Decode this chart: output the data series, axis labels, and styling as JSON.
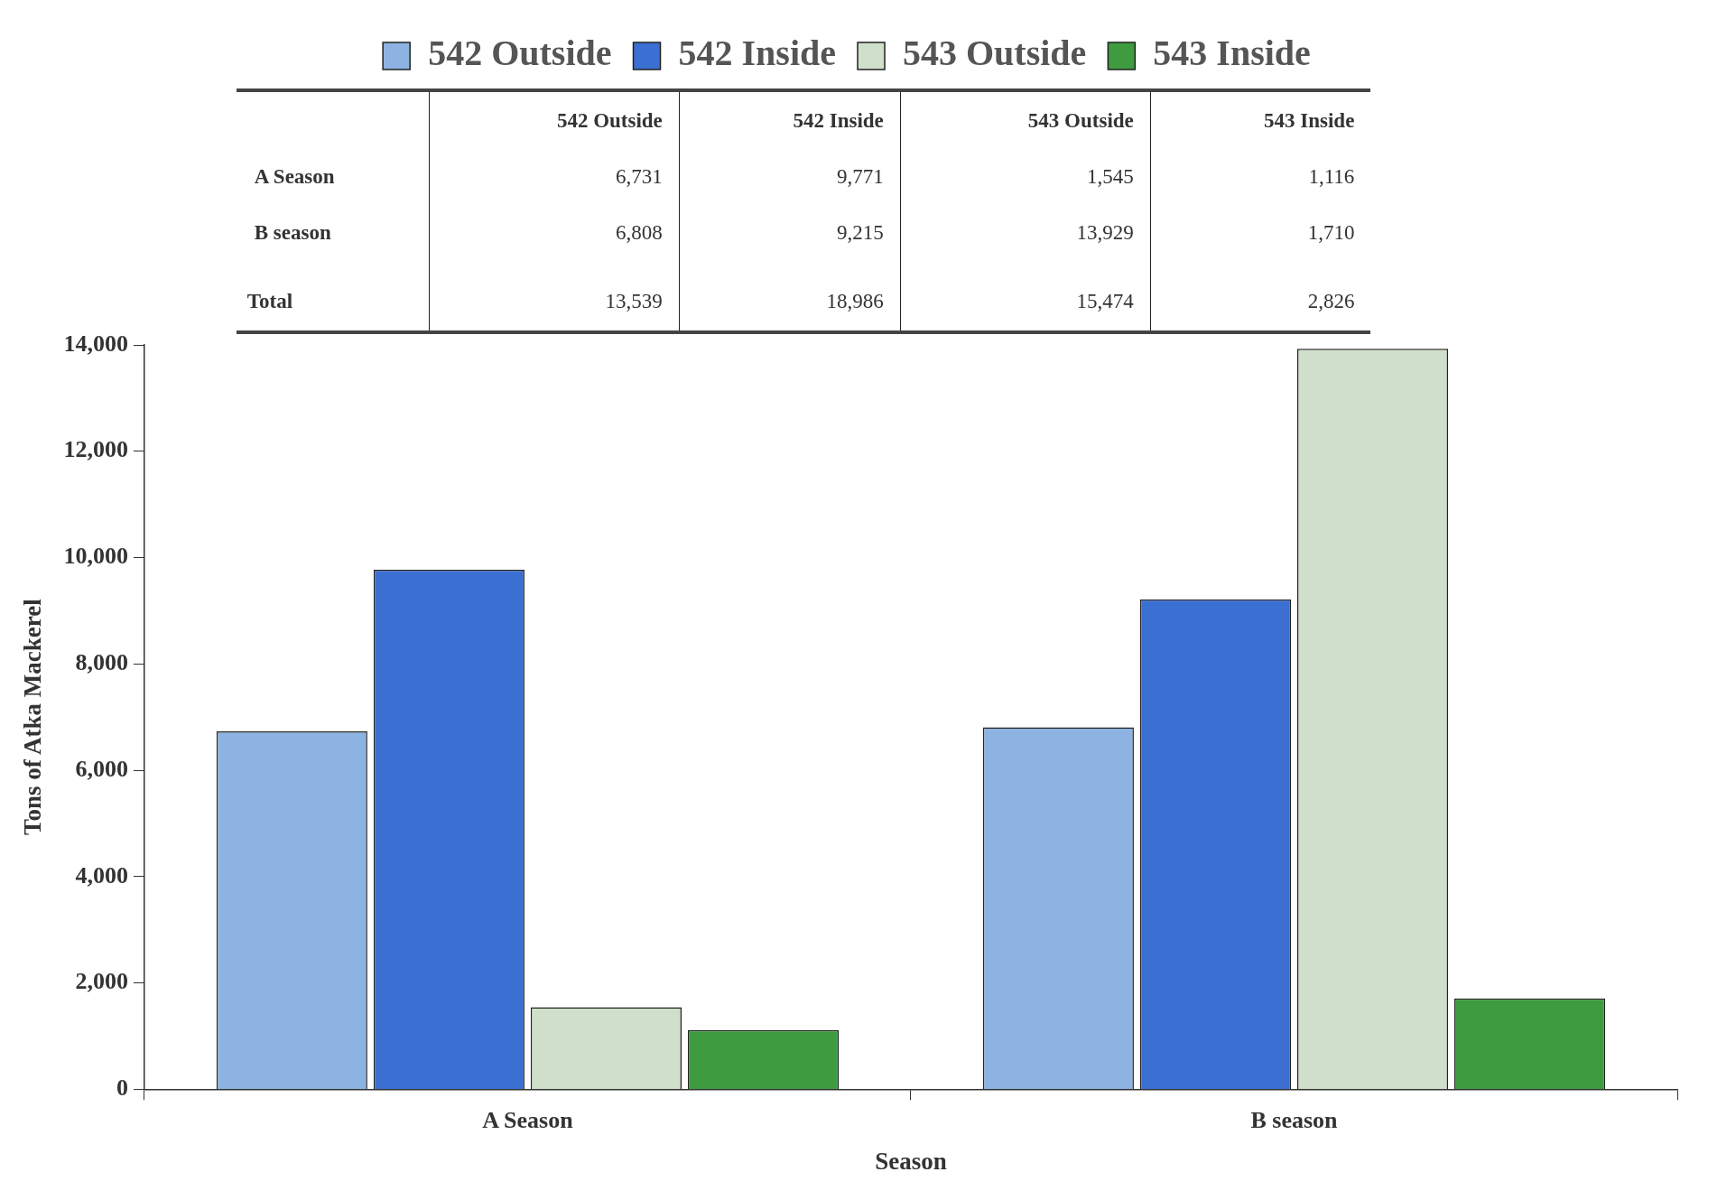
{
  "chart_data": {
    "type": "bar",
    "categories": [
      "A Season",
      "B season"
    ],
    "series": [
      {
        "name": "542 Outside",
        "color": "#8db3e2",
        "values": [
          6731,
          6808
        ]
      },
      {
        "name": "542 Inside",
        "color": "#3b6fd1",
        "values": [
          9771,
          9215
        ]
      },
      {
        "name": "543 Outside",
        "color": "#cfdfc9",
        "values": [
          1545,
          13929
        ]
      },
      {
        "name": "543 Inside",
        "color": "#3f9b3f",
        "values": [
          1116,
          1710
        ]
      }
    ],
    "xlabel": "Season",
    "ylabel": "Tons of Atka Mackerel",
    "ylim": [
      0,
      14000
    ],
    "yticks": [
      0,
      {
        "value": 2000,
        "label": "2,000"
      },
      {
        "value": 4000,
        "label": "4,000"
      },
      {
        "value": 6000,
        "label": "6,000"
      },
      {
        "value": 8000,
        "label": "8,000"
      },
      {
        "value": 10000,
        "label": "10,000"
      },
      {
        "value": 12000,
        "label": "12,000"
      },
      {
        "value": 14000,
        "label": "14,000"
      }
    ],
    "grid": false,
    "legend": "top",
    "annotations": [
      "6,731",
      "9,771",
      "1,545",
      "1,116",
      "6,808",
      "9,215",
      "13,929",
      "1,710",
      "Total",
      "13,539",
      "18,986",
      "15,474",
      "2,826"
    ]
  }
}
